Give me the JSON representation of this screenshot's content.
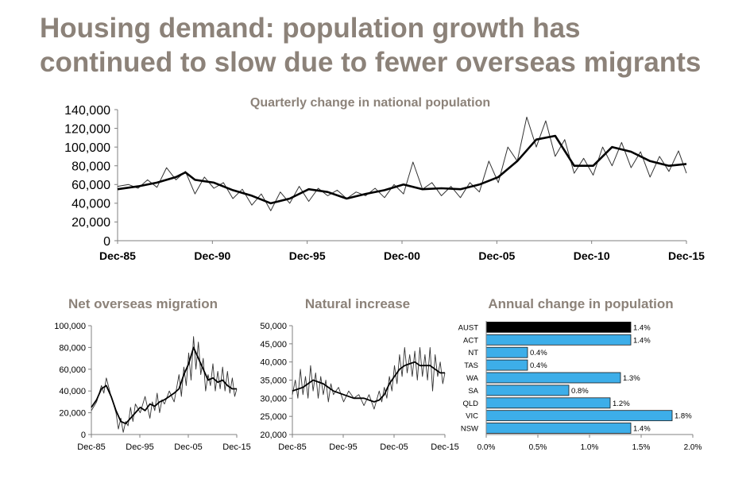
{
  "page": {
    "title_line1": "Housing demand: population growth has",
    "title_line2": "continued to slow due to fewer overseas migrants"
  },
  "chart_data": [
    {
      "type": "line",
      "title": "Quarterly change in national population",
      "x_tick_labels": [
        "Dec-85",
        "Dec-90",
        "Dec-95",
        "Dec-00",
        "Dec-05",
        "Dec-10",
        "Dec-15"
      ],
      "x_range": [
        1985.92,
        2015.92
      ],
      "ylim": [
        0,
        140000
      ],
      "y_ticks": [
        0,
        20000,
        40000,
        60000,
        80000,
        100000,
        120000,
        140000
      ],
      "y_tick_labels": [
        "0",
        "20,000",
        "40,000",
        "60,000",
        "80,000",
        "100,000",
        "120,000",
        "140,000"
      ],
      "series": [
        {
          "role": "quarterly",
          "style": "thin",
          "x": [
            1985.92,
            1986.5,
            1987,
            1987.5,
            1988,
            1988.5,
            1989,
            1989.5,
            1990,
            1990.5,
            1991,
            1991.5,
            1992,
            1992.5,
            1993,
            1993.5,
            1994,
            1994.5,
            1995,
            1995.5,
            1996,
            1996.5,
            1997,
            1997.5,
            1998,
            1998.5,
            1999,
            1999.5,
            2000,
            2000.5,
            2001,
            2001.5,
            2002,
            2002.5,
            2003,
            2003.5,
            2004,
            2004.5,
            2005,
            2005.5,
            2006,
            2006.5,
            2007,
            2007.5,
            2008,
            2008.5,
            2009,
            2009.5,
            2010,
            2010.5,
            2011,
            2011.5,
            2012,
            2012.5,
            2013,
            2013.5,
            2014,
            2014.5,
            2015,
            2015.5,
            2015.92
          ],
          "y": [
            58000,
            60000,
            56000,
            65000,
            57000,
            78000,
            65000,
            74000,
            50000,
            68000,
            56000,
            62000,
            45000,
            55000,
            38000,
            50000,
            32000,
            52000,
            40000,
            58000,
            42000,
            56000,
            48000,
            54000,
            45000,
            52000,
            48000,
            56000,
            46000,
            60000,
            50000,
            84000,
            55000,
            62000,
            48000,
            58000,
            46000,
            62000,
            52000,
            85000,
            62000,
            100000,
            85000,
            132000,
            100000,
            128000,
            90000,
            108000,
            72000,
            88000,
            70000,
            100000,
            80000,
            105000,
            78000,
            95000,
            68000,
            90000,
            74000,
            96000,
            72000
          ]
        },
        {
          "role": "trend",
          "style": "thick",
          "x": [
            1985.92,
            1987,
            1988,
            1989,
            1989.5,
            1990,
            1991,
            1992,
            1993,
            1994,
            1995,
            1996,
            1997,
            1998,
            1999,
            2000,
            2001,
            2002,
            2003,
            2004,
            2005,
            2006,
            2007,
            2008,
            2009,
            2010,
            2011,
            2012,
            2013,
            2014,
            2015,
            2015.92
          ],
          "y": [
            55000,
            58000,
            62000,
            68000,
            73000,
            65000,
            62000,
            54000,
            48000,
            40000,
            45000,
            55000,
            52000,
            45000,
            50000,
            54000,
            60000,
            55000,
            56000,
            55000,
            60000,
            68000,
            85000,
            108000,
            112000,
            80000,
            80000,
            100000,
            95000,
            85000,
            80000,
            82000
          ]
        }
      ]
    },
    {
      "type": "line",
      "title": "Net overseas migration",
      "x_tick_labels": [
        "Dec-85",
        "Dec-95",
        "Dec-05",
        "Dec-15"
      ],
      "x_range": [
        1985.92,
        2015.92
      ],
      "ylim": [
        0,
        100000
      ],
      "y_ticks": [
        0,
        20000,
        40000,
        60000,
        80000,
        100000
      ],
      "y_tick_labels": [
        "0",
        "20,000",
        "40,000",
        "60,000",
        "80,000",
        "100,000"
      ],
      "series": [
        {
          "role": "quarterly",
          "style": "thin",
          "x": [
            1985.92,
            1987,
            1988,
            1988.5,
            1989,
            1990,
            1990.5,
            1991,
            1991.5,
            1992,
            1992.5,
            1993,
            1993.5,
            1994,
            1994.5,
            1995,
            1996,
            1997,
            1998,
            1998.5,
            1999,
            1999.5,
            2000,
            2000.5,
            2001,
            2002,
            2003,
            2004,
            2004.5,
            2005,
            2005.5,
            2006,
            2006.5,
            2007,
            2007.5,
            2008,
            2008.5,
            2009,
            2009.5,
            2010,
            2010.5,
            2011,
            2011.5,
            2012,
            2012.5,
            2013,
            2013.5,
            2014,
            2014.5,
            2015,
            2015.5,
            2015.92
          ],
          "y": [
            22000,
            30000,
            45000,
            38000,
            52000,
            35000,
            28000,
            20000,
            5000,
            15000,
            2000,
            12000,
            8000,
            25000,
            12000,
            28000,
            20000,
            35000,
            15000,
            30000,
            22000,
            38000,
            20000,
            32000,
            28000,
            40000,
            30000,
            55000,
            35000,
            62000,
            45000,
            75000,
            50000,
            90000,
            60000,
            85000,
            55000,
            70000,
            40000,
            55000,
            45000,
            65000,
            40000,
            58000,
            42000,
            62000,
            40000,
            58000,
            38000,
            52000,
            35000,
            42000
          ]
        },
        {
          "role": "trend",
          "style": "thick",
          "x": [
            1985.92,
            1987,
            1988,
            1989,
            1990,
            1991,
            1992,
            1993,
            1994,
            1995,
            1996,
            1997,
            1998,
            1999,
            2000,
            2001,
            2002,
            2003,
            2004,
            2005,
            2006,
            2007,
            2008,
            2009,
            2010,
            2011,
            2012,
            2013,
            2014,
            2015,
            2015.92
          ],
          "y": [
            25000,
            32000,
            42000,
            45000,
            35000,
            22000,
            12000,
            10000,
            15000,
            20000,
            25000,
            22000,
            28000,
            26000,
            30000,
            32000,
            35000,
            38000,
            42000,
            55000,
            65000,
            80000,
            70000,
            60000,
            50000,
            52000,
            48000,
            50000,
            45000,
            42000,
            42000
          ]
        }
      ]
    },
    {
      "type": "line",
      "title": "Natural increase",
      "x_tick_labels": [
        "Dec-85",
        "Dec-95",
        "Dec-05",
        "Dec-15"
      ],
      "x_range": [
        1985.92,
        2015.92
      ],
      "ylim": [
        20000,
        50000
      ],
      "y_ticks": [
        20000,
        25000,
        30000,
        35000,
        40000,
        45000,
        50000
      ],
      "y_tick_labels": [
        "20,000",
        "25,000",
        "30,000",
        "35,000",
        "40,000",
        "45,000",
        "50,000"
      ],
      "series": [
        {
          "role": "quarterly",
          "style": "thin",
          "x": [
            1985.92,
            1986.5,
            1987,
            1987.5,
            1988,
            1988.5,
            1989,
            1989.5,
            1990,
            1990.5,
            1991,
            1991.5,
            1992,
            1992.5,
            1993,
            1993.5,
            1994,
            1995,
            1996,
            1997,
            1998,
            1999,
            2000,
            2001,
            2002,
            2003,
            2003.5,
            2004,
            2004.5,
            2005,
            2005.5,
            2006,
            2006.5,
            2007,
            2007.5,
            2008,
            2008.5,
            2009,
            2009.5,
            2010,
            2010.5,
            2011,
            2011.5,
            2012,
            2012.5,
            2013,
            2013.5,
            2014,
            2014.5,
            2015,
            2015.5,
            2015.92
          ],
          "y": [
            31000,
            35000,
            30000,
            38000,
            31000,
            36000,
            30000,
            39000,
            32000,
            37000,
            30000,
            36000,
            31000,
            35000,
            29000,
            34000,
            31000,
            33000,
            29000,
            32000,
            30000,
            31000,
            28000,
            31000,
            27000,
            32000,
            29000,
            33000,
            30000,
            36000,
            32000,
            39000,
            34000,
            42000,
            36000,
            44000,
            37000,
            42000,
            36000,
            43000,
            35000,
            44000,
            36000,
            42000,
            35000,
            44000,
            32000,
            42000,
            36000,
            40000,
            34000,
            37000
          ]
        },
        {
          "role": "trend",
          "style": "thick",
          "x": [
            1985.92,
            1988,
            1990,
            1992,
            1994,
            1996,
            1998,
            2000,
            2002,
            2003,
            2004,
            2005,
            2006,
            2007,
            2008,
            2009,
            2010,
            2011,
            2012,
            2013,
            2014,
            2015,
            2015.92
          ],
          "y": [
            32000,
            33000,
            35000,
            34000,
            32000,
            31000,
            30000,
            30000,
            29000,
            29500,
            31000,
            34000,
            36000,
            38000,
            39000,
            39500,
            40000,
            39000,
            39000,
            39000,
            38000,
            37000,
            37000
          ]
        }
      ]
    },
    {
      "type": "bar",
      "orientation": "horizontal",
      "title": "Annual change in population",
      "categories": [
        "AUST",
        "ACT",
        "NT",
        "TAS",
        "WA",
        "SA",
        "QLD",
        "VIC",
        "NSW"
      ],
      "values": [
        1.4,
        1.4,
        0.4,
        0.4,
        1.3,
        0.8,
        1.2,
        1.8,
        1.4
      ],
      "value_labels": [
        "1.4%",
        "1.4%",
        "0.4%",
        "0.4%",
        "1.3%",
        "0.8%",
        "1.2%",
        "1.8%",
        "1.4%"
      ],
      "xlim": [
        0,
        2.0
      ],
      "x_ticks": [
        0,
        0.5,
        1.0,
        1.5,
        2.0
      ],
      "x_tick_labels": [
        "0.0%",
        "0.5%",
        "1.0%",
        "1.5%",
        "2.0%"
      ],
      "colors": {
        "highlight": "#000000",
        "bar": "#3daee9",
        "bar_edge": "#1a1a1a"
      }
    }
  ]
}
